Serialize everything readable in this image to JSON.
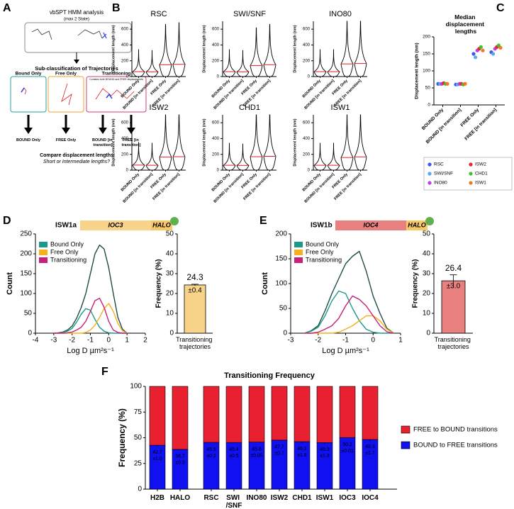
{
  "panel_labels": [
    "A",
    "B",
    "C",
    "D",
    "E",
    "F"
  ],
  "panel_a": {
    "title": "vbSPT HMM analysis",
    "subtitle": "(max 2 State)",
    "step": "Sub-classification of Trajectories",
    "boxes": [
      {
        "label": "Bound Only",
        "color": "#2aa198"
      },
      {
        "label": "Free Only",
        "color": "#f0a030"
      },
      {
        "label": "Transitioning",
        "note": "Contains both BOUND and FREE displacements",
        "color": "#d04080"
      }
    ],
    "outputs": [
      "BOUND Only",
      "FREE Only",
      "BOUND [in transition]",
      "FREE [in transition]"
    ],
    "output_colors": [
      "#2040e0",
      "#e02020",
      "#2040e0",
      "#e02020"
    ],
    "question": "Compare displacement lengths",
    "question_note": "Short or Intermediate lengths?"
  },
  "chart_data": [
    {
      "type": "violin",
      "title": "RSC",
      "title_color": "#3a5ae8",
      "ylabel": "Displacement length (nm)",
      "categories": [
        "BOUND Only",
        "BOUND [in transition]",
        "FREE Only",
        "FREE [in transition]"
      ],
      "category_colors": [
        "#2040e0",
        "#2040e0",
        "#e02020",
        "#e02020"
      ],
      "values": [
        62,
        60,
        150,
        155
      ],
      "ylim": [
        0,
        700
      ],
      "yticks": [
        0,
        200,
        400,
        600
      ]
    },
    {
      "type": "violin",
      "title": "SWI/SNF",
      "title_color": "#5aa8f0",
      "ylabel": "Displacement length (nm)",
      "categories": [
        "BOUND Only",
        "BOUND [in transition]",
        "FREE Only",
        "FREE [in transition]"
      ],
      "category_colors": [
        "#2040e0",
        "#2040e0",
        "#e02020",
        "#e02020"
      ],
      "values": [
        62,
        60,
        140,
        150
      ],
      "ylim": [
        0,
        700
      ],
      "yticks": [
        0,
        200,
        400,
        600
      ]
    },
    {
      "type": "violin",
      "title": "INO80",
      "title_color": "#c040e0",
      "ylabel": "Displacement length (nm)",
      "categories": [
        "BOUND Only",
        "BOUND [in transition]",
        "FREE Only",
        "FREE [in transition]"
      ],
      "category_colors": [
        "#2040e0",
        "#2040e0",
        "#e02020",
        "#e02020"
      ],
      "values": [
        62,
        62,
        160,
        165
      ],
      "ylim": [
        0,
        700
      ],
      "yticks": [
        0,
        200,
        400,
        600
      ]
    },
    {
      "type": "violin",
      "title": "ISW2",
      "title_color": "#e02838",
      "ylabel": "Displacement length (nm)",
      "categories": [
        "BOUND Only",
        "BOUND [in transition]",
        "FREE Only",
        "FREE [in transition]"
      ],
      "category_colors": [
        "#2040e0",
        "#2040e0",
        "#e02020",
        "#e02020"
      ],
      "values": [
        64,
        62,
        165,
        170
      ],
      "ylim": [
        0,
        700
      ],
      "yticks": [
        0,
        200,
        400,
        600
      ]
    },
    {
      "type": "violin",
      "title": "CHD1",
      "title_color": "#40c030",
      "ylabel": "Displacement length (nm)",
      "categories": [
        "BOUND Only",
        "BOUND [in transition]",
        "FREE Only",
        "FREE [in transition]"
      ],
      "category_colors": [
        "#2040e0",
        "#2040e0",
        "#e02020",
        "#e02020"
      ],
      "values": [
        62,
        60,
        170,
        175
      ],
      "ylim": [
        0,
        700
      ],
      "yticks": [
        0,
        200,
        400,
        600
      ]
    },
    {
      "type": "violin",
      "title": "ISW1",
      "title_color": "#f07820",
      "ylabel": "Displacement length (nm)",
      "categories": [
        "BOUND Only",
        "BOUND [in transition]",
        "FREE Only",
        "FREE [in transition]"
      ],
      "category_colors": [
        "#2040e0",
        "#2040e0",
        "#e02020",
        "#e02020"
      ],
      "values": [
        62,
        62,
        160,
        168
      ],
      "ylim": [
        0,
        700
      ],
      "yticks": [
        0,
        200,
        400,
        600
      ]
    },
    {
      "type": "scatter",
      "title": "Median displacement lengths",
      "ylabel": "Displacement length (nm)",
      "categories": [
        "BOUND Only",
        "BOUND [in transition]",
        "FREE Only",
        "FREE [in transition]"
      ],
      "category_colors": [
        "#2040e0",
        "#2040e0",
        "#e02020",
        "#e02020"
      ],
      "ylim": [
        0,
        200
      ],
      "yticks": [
        0,
        50,
        100,
        150,
        200
      ],
      "series": [
        {
          "name": "RSC",
          "color": "#3a5ae8",
          "values": [
            62,
            60,
            150,
            155
          ]
        },
        {
          "name": "SWI/SNF",
          "color": "#5aa8f0",
          "values": [
            62,
            60,
            140,
            150
          ]
        },
        {
          "name": "INO80",
          "color": "#c040e0",
          "values": [
            62,
            62,
            160,
            165
          ]
        },
        {
          "name": "ISW2",
          "color": "#e02838",
          "values": [
            64,
            62,
            165,
            170
          ]
        },
        {
          "name": "CHD1",
          "color": "#40c030",
          "values": [
            62,
            60,
            170,
            175
          ]
        },
        {
          "name": "ISW1",
          "color": "#f07820",
          "values": [
            62,
            62,
            160,
            168
          ]
        }
      ]
    },
    {
      "type": "line",
      "header": {
        "label": "ISW1a",
        "gene": "IOC3",
        "tag": "HALO",
        "color": "#f0b040",
        "gene_color": "#f7d48a"
      },
      "xlabel": "Log D µm²s⁻¹",
      "ylabel": "Count",
      "xlim": [
        -4,
        2
      ],
      "xticks": [
        -4,
        -3,
        -2,
        -1,
        0,
        1,
        2
      ],
      "ylim": [
        0,
        250
      ],
      "yticks": [
        0,
        50,
        100,
        150,
        200,
        250
      ],
      "x": [
        -3,
        -2.75,
        -2.5,
        -2.25,
        -2,
        -1.75,
        -1.5,
        -1.25,
        -1,
        -0.75,
        -0.5,
        -0.25,
        0,
        0.25,
        0.5,
        0.75,
        1
      ],
      "series": [
        {
          "color": "#1e4d40",
          "values": [
            0,
            1,
            3,
            8,
            18,
            38,
            65,
            100,
            150,
            200,
            222,
            212,
            165,
            100,
            40,
            10,
            0
          ]
        },
        {
          "name": "Bound Only",
          "color": "#1a9a8a",
          "values": [
            0,
            0,
            2,
            5,
            12,
            28,
            48,
            62,
            58,
            35,
            15,
            5,
            1,
            0,
            0,
            0,
            0
          ]
        },
        {
          "name": "Free Only",
          "color": "#f5b020",
          "values": [
            0,
            0,
            0,
            0,
            0,
            0,
            0,
            2,
            8,
            20,
            40,
            62,
            75,
            55,
            25,
            6,
            0
          ]
        },
        {
          "name": "Transitioning",
          "color": "#c8207a",
          "values": [
            0,
            0,
            0,
            1,
            3,
            8,
            15,
            30,
            55,
            82,
            88,
            65,
            30,
            8,
            2,
            0,
            0
          ]
        }
      ]
    },
    {
      "type": "bar",
      "ylabel": "Frequency (%)",
      "categories": [
        "Transitioning trajectories"
      ],
      "values": [
        24.3
      ],
      "value_labels": [
        "24.3"
      ],
      "errors": [
        0.4
      ],
      "error_labels": [
        "±0.4"
      ],
      "color": "#f7d48a",
      "ylim": [
        0,
        50
      ],
      "yticks": [
        0,
        10,
        20,
        30,
        40,
        50
      ]
    },
    {
      "type": "line",
      "header": {
        "label": "ISW1b",
        "gene": "IOC4",
        "tag": "HALO",
        "color": "#e07070",
        "gene_color": "#e98080"
      },
      "xlabel": "Log D µm²s⁻¹",
      "ylabel": "Count",
      "xlim": [
        -3,
        1
      ],
      "xticks": [
        -3,
        -2,
        -1,
        0,
        1
      ],
      "ylim": [
        0,
        200
      ],
      "yticks": [
        0,
        50,
        100,
        150,
        200
      ],
      "x": [
        -2.5,
        -2.25,
        -2,
        -1.75,
        -1.5,
        -1.25,
        -1,
        -0.75,
        -0.5,
        -0.25,
        0,
        0.25,
        0.5,
        0.75
      ],
      "series": [
        {
          "color": "#1e4d40",
          "values": [
            0,
            5,
            15,
            45,
            80,
            110,
            140,
            155,
            165,
            125,
            75,
            40,
            10,
            0
          ]
        },
        {
          "name": "Bound Only",
          "color": "#1a9a8a",
          "values": [
            0,
            4,
            12,
            35,
            65,
            85,
            80,
            50,
            25,
            8,
            2,
            0,
            0,
            0
          ]
        },
        {
          "name": "Free Only",
          "color": "#f5b020",
          "values": [
            0,
            0,
            0,
            0,
            0,
            2,
            8,
            15,
            25,
            35,
            35,
            25,
            8,
            0
          ]
        },
        {
          "name": "Transitioning",
          "color": "#c8207a",
          "values": [
            0,
            0,
            2,
            8,
            15,
            30,
            55,
            75,
            68,
            55,
            35,
            15,
            3,
            0
          ]
        }
      ]
    },
    {
      "type": "bar",
      "ylabel": "Frequency (%)",
      "categories": [
        "Transitioning trajectories"
      ],
      "values": [
        26.4
      ],
      "value_labels": [
        "26.4"
      ],
      "errors": [
        3.0
      ],
      "error_labels": [
        "±3.0"
      ],
      "color": "#e98080",
      "ylim": [
        0,
        50
      ],
      "yticks": [
        0,
        10,
        20,
        30,
        40,
        50
      ]
    },
    {
      "type": "stacked_bar",
      "title": "Transitioning Frequency",
      "ylabel": "Frequency (%)",
      "categories": [
        "H2B",
        "HALO",
        "RSC",
        "SWI /SNF",
        "INO80",
        "ISW2",
        "CHD1",
        "ISW1",
        "IOC3",
        "IOC4"
      ],
      "category_colors": [
        "#7a5230",
        "#e060b0",
        "#3a5ae8",
        "#5aa8f0",
        "#c040e0",
        "#e02838",
        "#40c030",
        "#f07820",
        "#f0a030",
        "#e07070"
      ],
      "ylim": [
        0,
        100
      ],
      "yticks": [
        0,
        25,
        50,
        75,
        100
      ],
      "series": [
        {
          "name": "BOUND to FREE transitions",
          "color": "#1010f0",
          "values": [
            42.7,
            38.7,
            45.5,
            45.4,
            45.8,
            47.7,
            46.2,
            45.3,
            50.2,
            48.3
          ],
          "value_labels": [
            "42.7",
            "38.7",
            "45.5",
            "45.4",
            "45.8",
            "47.7",
            "46.2",
            "45.3",
            "50.2",
            "48.3"
          ],
          "errors": [
            1.0,
            0.5,
            0.2,
            0.5,
            0.05,
            0.7,
            1.6,
            1.3,
            0.01,
            1.7
          ],
          "error_labels": [
            "±1.0",
            "±0.5",
            "±0.2",
            "±0.5",
            "±0.05",
            "±0.7",
            "±1.6",
            "±1.3",
            "±0.01",
            "±1.7"
          ]
        },
        {
          "name": "FREE to BOUND transitions",
          "color": "#e82030",
          "values": [
            57.3,
            61.3,
            54.5,
            54.6,
            54.2,
            52.3,
            53.8,
            54.7,
            49.8,
            51.7
          ]
        }
      ]
    }
  ]
}
